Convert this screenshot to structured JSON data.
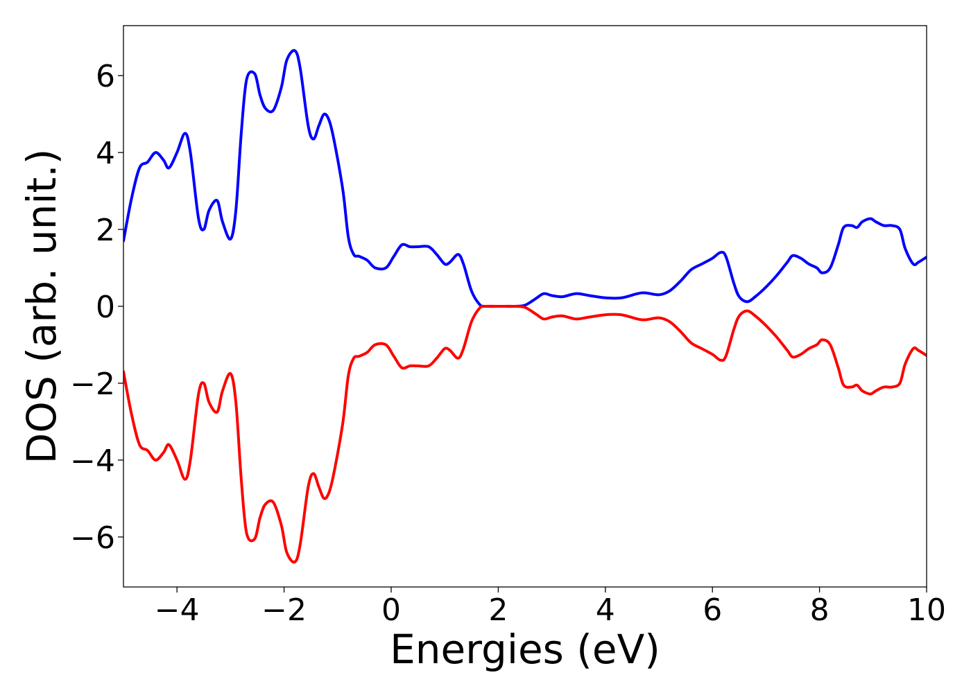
{
  "chart_data": {
    "type": "line",
    "title": "",
    "xlabel": "Energies (eV)",
    "ylabel": "DOS (arb. unit.)",
    "xlim": [
      -5,
      10
    ],
    "ylim": [
      -7.3,
      7.3
    ],
    "xticks": [
      -4,
      -2,
      0,
      2,
      4,
      6,
      8,
      10
    ],
    "yticks": [
      -6,
      -4,
      -2,
      0,
      2,
      4,
      6
    ],
    "xtick_labels": [
      "−4",
      "−2",
      "0",
      "2",
      "4",
      "6",
      "8",
      "10"
    ],
    "ytick_labels": [
      "−6",
      "−4",
      "−2",
      "0",
      "2",
      "4",
      "6"
    ],
    "grid": false,
    "legend": "none",
    "series": [
      {
        "color": "#0000ff",
        "x": [
          -5.0,
          -4.85,
          -4.7,
          -4.55,
          -4.4,
          -4.25,
          -4.15,
          -4.0,
          -3.85,
          -3.75,
          -3.6,
          -3.5,
          -3.4,
          -3.25,
          -3.15,
          -3.0,
          -2.9,
          -2.8,
          -2.7,
          -2.55,
          -2.45,
          -2.35,
          -2.2,
          -2.05,
          -1.95,
          -1.8,
          -1.7,
          -1.55,
          -1.45,
          -1.35,
          -1.25,
          -1.15,
          -1.05,
          -0.9,
          -0.8,
          -0.7,
          -0.6,
          -0.45,
          -0.3,
          -0.1,
          0.05,
          0.2,
          0.35,
          0.5,
          0.7,
          0.85,
          1.0,
          1.1,
          1.25,
          1.35,
          1.5,
          1.65,
          1.75,
          2.0,
          2.3,
          2.5,
          2.7,
          2.85,
          3.0,
          3.2,
          3.45,
          3.7,
          4.0,
          4.3,
          4.6,
          4.75,
          5.0,
          5.2,
          5.4,
          5.6,
          5.8,
          6.0,
          6.15,
          6.25,
          6.4,
          6.5,
          6.65,
          6.8,
          7.0,
          7.2,
          7.4,
          7.5,
          7.65,
          7.8,
          7.95,
          8.05,
          8.2,
          8.35,
          8.45,
          8.6,
          8.7,
          8.8,
          8.95,
          9.05,
          9.2,
          9.35,
          9.5,
          9.6,
          9.75,
          9.85,
          10.0
        ],
        "y": [
          1.7,
          2.8,
          3.6,
          3.75,
          4.0,
          3.8,
          3.6,
          4.0,
          4.5,
          4.0,
          2.3,
          2.0,
          2.5,
          2.75,
          2.2,
          1.75,
          2.5,
          4.5,
          5.9,
          6.05,
          5.5,
          5.15,
          5.1,
          5.7,
          6.4,
          6.65,
          6.2,
          4.7,
          4.35,
          4.7,
          5.0,
          4.8,
          4.2,
          3.0,
          1.8,
          1.35,
          1.3,
          1.2,
          1.0,
          1.0,
          1.3,
          1.6,
          1.55,
          1.55,
          1.55,
          1.35,
          1.1,
          1.15,
          1.35,
          1.1,
          0.4,
          0.05,
          0.0,
          0.0,
          0.0,
          0.03,
          0.2,
          0.33,
          0.28,
          0.25,
          0.33,
          0.28,
          0.22,
          0.22,
          0.33,
          0.35,
          0.3,
          0.4,
          0.65,
          0.95,
          1.1,
          1.25,
          1.4,
          1.3,
          0.6,
          0.25,
          0.12,
          0.25,
          0.5,
          0.8,
          1.15,
          1.32,
          1.25,
          1.1,
          1.0,
          0.87,
          1.0,
          1.6,
          2.05,
          2.1,
          2.05,
          2.2,
          2.28,
          2.2,
          2.1,
          2.1,
          2.0,
          1.5,
          1.1,
          1.15,
          1.28
        ]
      },
      {
        "color": "#ff0000",
        "x": [
          -5.0,
          -4.85,
          -4.7,
          -4.55,
          -4.4,
          -4.25,
          -4.15,
          -4.0,
          -3.85,
          -3.75,
          -3.6,
          -3.5,
          -3.4,
          -3.25,
          -3.15,
          -3.0,
          -2.9,
          -2.8,
          -2.7,
          -2.55,
          -2.45,
          -2.35,
          -2.2,
          -2.05,
          -1.95,
          -1.8,
          -1.7,
          -1.55,
          -1.45,
          -1.35,
          -1.25,
          -1.15,
          -1.05,
          -0.9,
          -0.8,
          -0.7,
          -0.6,
          -0.45,
          -0.3,
          -0.1,
          0.05,
          0.2,
          0.35,
          0.5,
          0.7,
          0.85,
          1.0,
          1.1,
          1.25,
          1.35,
          1.5,
          1.65,
          1.75,
          2.0,
          2.3,
          2.5,
          2.7,
          2.85,
          3.0,
          3.2,
          3.45,
          3.7,
          4.0,
          4.3,
          4.6,
          4.75,
          5.0,
          5.2,
          5.4,
          5.6,
          5.8,
          6.0,
          6.15,
          6.25,
          6.4,
          6.5,
          6.65,
          6.8,
          7.0,
          7.2,
          7.4,
          7.5,
          7.65,
          7.8,
          7.95,
          8.05,
          8.2,
          8.35,
          8.45,
          8.6,
          8.7,
          8.8,
          8.95,
          9.05,
          9.2,
          9.35,
          9.5,
          9.6,
          9.75,
          9.85,
          10.0
        ],
        "y": [
          -1.7,
          -2.8,
          -3.6,
          -3.75,
          -4.0,
          -3.8,
          -3.6,
          -4.0,
          -4.5,
          -4.0,
          -2.3,
          -2.0,
          -2.5,
          -2.75,
          -2.2,
          -1.75,
          -2.5,
          -4.5,
          -5.9,
          -6.05,
          -5.5,
          -5.15,
          -5.1,
          -5.7,
          -6.4,
          -6.65,
          -6.2,
          -4.7,
          -4.35,
          -4.7,
          -5.0,
          -4.8,
          -4.2,
          -3.0,
          -1.8,
          -1.35,
          -1.3,
          -1.2,
          -1.0,
          -1.0,
          -1.3,
          -1.6,
          -1.55,
          -1.55,
          -1.55,
          -1.35,
          -1.1,
          -1.15,
          -1.35,
          -1.1,
          -0.4,
          -0.05,
          0.0,
          0.0,
          0.0,
          -0.03,
          -0.2,
          -0.33,
          -0.28,
          -0.25,
          -0.33,
          -0.28,
          -0.22,
          -0.22,
          -0.33,
          -0.35,
          -0.3,
          -0.4,
          -0.65,
          -0.95,
          -1.1,
          -1.25,
          -1.4,
          -1.3,
          -0.6,
          -0.25,
          -0.12,
          -0.25,
          -0.5,
          -0.8,
          -1.15,
          -1.32,
          -1.25,
          -1.1,
          -1.0,
          -0.87,
          -1.0,
          -1.6,
          -2.05,
          -2.1,
          -2.05,
          -2.2,
          -2.28,
          -2.2,
          -2.1,
          -2.1,
          -2.0,
          -1.5,
          -1.1,
          -1.15,
          -1.28
        ]
      }
    ]
  }
}
